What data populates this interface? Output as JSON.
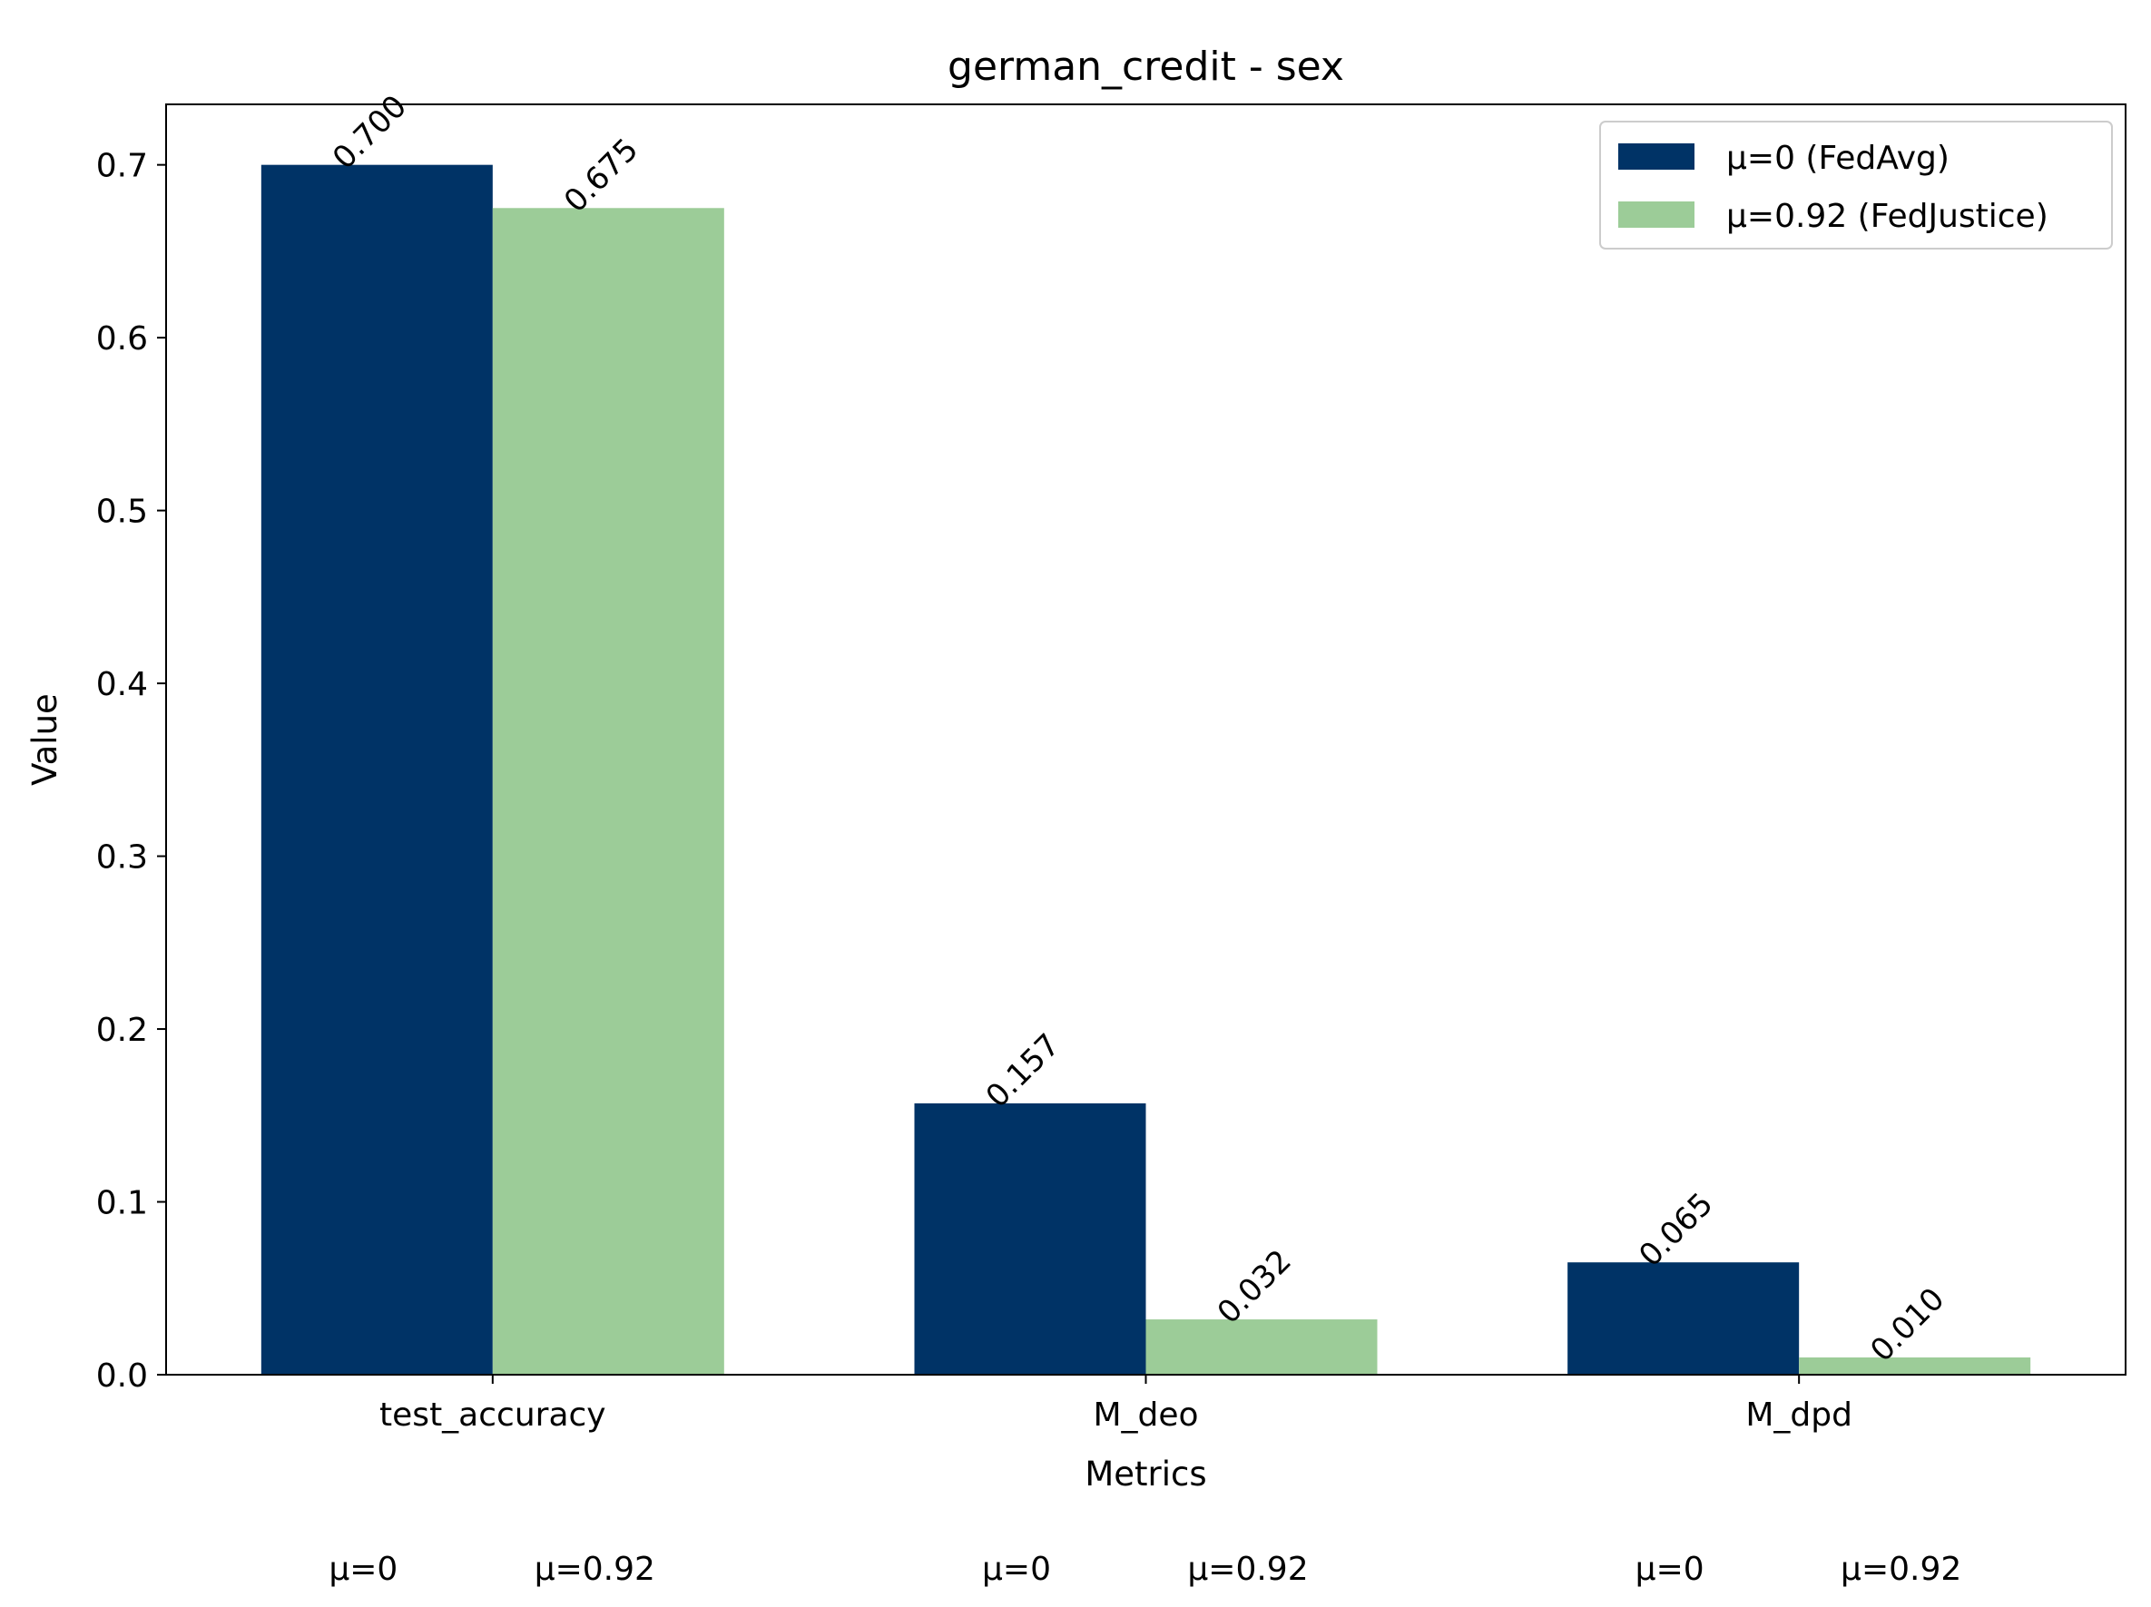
{
  "chart_data": {
    "type": "bar",
    "title": "german_credit - sex",
    "xlabel": "Metrics",
    "ylabel": "Value",
    "categories": [
      "test_accuracy",
      "M_deo",
      "M_dpd"
    ],
    "series": [
      {
        "name": "μ=0 (FedAvg)",
        "short_label": "μ=0",
        "color": "#003366",
        "values": [
          0.7,
          0.157,
          0.065
        ],
        "labels": [
          "0.700",
          "0.157",
          "0.065"
        ]
      },
      {
        "name": "μ=0.92 (FedJustice)",
        "short_label": "μ=0.92",
        "color": "#9ccc98",
        "values": [
          0.675,
          0.032,
          0.01
        ],
        "labels": [
          "0.675",
          "0.032",
          "0.010"
        ]
      }
    ],
    "ylim": [
      0,
      0.735
    ],
    "yticks": [
      0.0,
      0.1,
      0.2,
      0.3,
      0.4,
      0.5,
      0.6,
      0.7
    ],
    "ytick_labels": [
      "0.0",
      "0.1",
      "0.2",
      "0.3",
      "0.4",
      "0.5",
      "0.6",
      "0.7"
    ],
    "grid": false,
    "legend_position": "top-right"
  }
}
